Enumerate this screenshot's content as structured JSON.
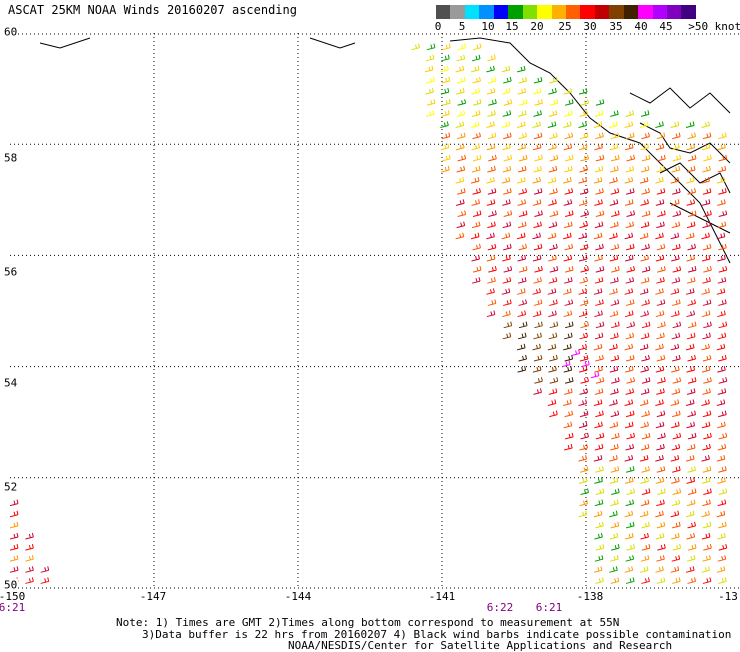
{
  "title": "ASCAT 25KM NOAA Winds 20160207 ascending",
  "colorbar": {
    "colors": [
      "#505050",
      "#9a9a9a",
      "#00e0ff",
      "#0090ff",
      "#0000ff",
      "#00a000",
      "#80e000",
      "#ffff00",
      "#ffb000",
      "#ff6000",
      "#ff0000",
      "#c00000",
      "#804000",
      "#402000",
      "#ff00ff",
      "#b000ff",
      "#8000c0",
      "#400080"
    ],
    "labels": [
      "0",
      "5",
      "10",
      "15",
      "20",
      "25",
      "30",
      "35",
      "40",
      "45",
      ">50 knots"
    ]
  },
  "axes": {
    "lat_labels": [
      "60",
      "58",
      "56",
      "54",
      "52",
      "50"
    ],
    "lon_labels": [
      "-150",
      "-147",
      "-144",
      "-141",
      "-138",
      "-13"
    ]
  },
  "time_labels": [
    "6:21",
    "6:22",
    "6:21"
  ],
  "notes": [
    "Note: 1) Times are GMT 2)Times along bottom correspond to measurement at 55N",
    "3)Data buffer is 22 hrs from 20160207 4) Black wind barbs indicate possible contamination",
    "NOAA/NESDIS/Center for Satellite Applications and Research"
  ],
  "map_data": {
    "lat_range": [
      50,
      60
    ],
    "lon_range": [
      -150,
      -135
    ],
    "gridlines": "dotted",
    "swaths": [
      {
        "name": "main",
        "polygon": [
          [
            -141.7,
            59.8
          ],
          [
            -140.6,
            59.8
          ],
          [
            -137.2,
            58.6
          ],
          [
            -135,
            58.2
          ],
          [
            -135,
            50
          ],
          [
            -137.8,
            50
          ],
          [
            -138.5,
            52.5
          ],
          [
            -140.5,
            55.5
          ],
          [
            -141.7,
            59.8
          ]
        ]
      },
      {
        "name": "west",
        "polygon": [
          [
            -150,
            51.7
          ],
          [
            -149.2,
            50
          ],
          [
            -150,
            50
          ]
        ]
      }
    ]
  }
}
